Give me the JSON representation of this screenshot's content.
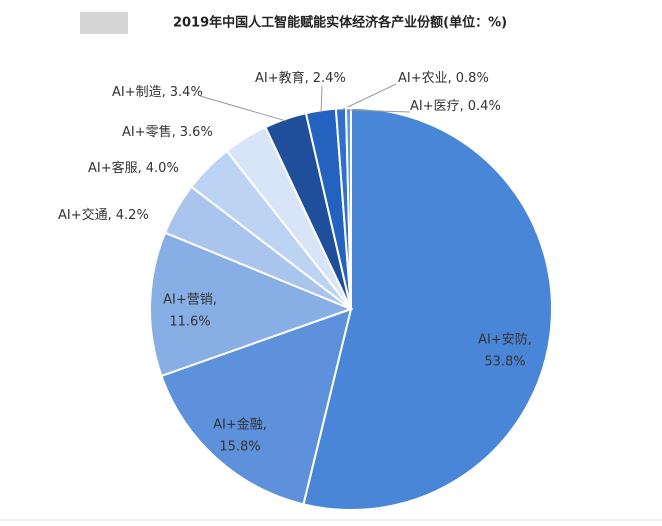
{
  "chart_data": {
    "type": "pie",
    "title": "2019年中国人工智能赋能实体经济各产业份额(单位：%)",
    "categories": [
      "AI+安防,",
      "AI+金融,",
      "AI+营销,",
      "AI+交通,",
      "AI+客服,",
      "AI+零售,",
      "AI+制造,",
      "AI+教育,",
      "AI+农业,",
      "AI+医疗,"
    ],
    "values": [
      53.8,
      15.8,
      11.6,
      4.2,
      4.0,
      3.6,
      3.4,
      2.4,
      0.8,
      0.4
    ],
    "value_labels": [
      "53.8%",
      "15.8%",
      "11.6%",
      "4.2%",
      "4.0%",
      "3.6%",
      "3.4%",
      "2.4%",
      "0.8%",
      "0.4%"
    ],
    "colors": [
      "#4a86d8",
      "#5d91dc",
      "#88aee6",
      "#a9c5ee",
      "#bdd3f3",
      "#d8e5f8",
      "#1f4e9a",
      "#2462bf",
      "#2f6fd0",
      "#5a9ae0"
    ]
  }
}
